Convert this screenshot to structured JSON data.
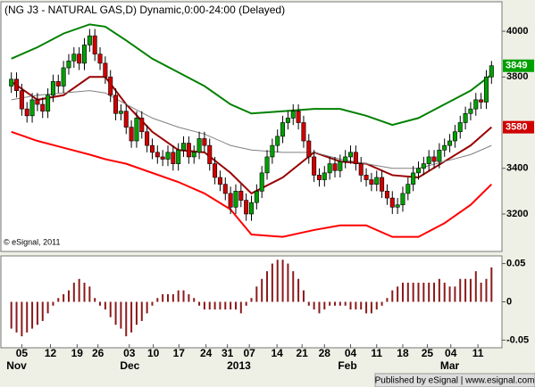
{
  "chart_data": [
    {
      "type": "candlestick",
      "title": "(NG J3 - NATURAL GAS,D) Dynamic,0:00-24:00 (Delayed)",
      "credit": "© eSignal, 2011",
      "publisher": "Published by eSignal | www.esignal.com",
      "up_color": "#00a000",
      "down_color": "#d00000",
      "open": [
        3760,
        3790,
        3740,
        3660,
        3630,
        3700,
        3680,
        3650,
        3720,
        3780,
        3760,
        3840,
        3870,
        3900,
        3860,
        3940,
        3980,
        3900,
        3860,
        3800,
        3720,
        3640,
        3650,
        3580,
        3520,
        3620,
        3560,
        3500,
        3470,
        3450,
        3440,
        3470,
        3420,
        3480,
        3510,
        3450,
        3470,
        3530,
        3500,
        3420,
        3360,
        3330,
        3290,
        3230,
        3300,
        3260,
        3200,
        3250,
        3300,
        3380,
        3450,
        3500,
        3540,
        3600,
        3620,
        3650,
        3600,
        3520,
        3450,
        3370,
        3350,
        3380,
        3420,
        3390,
        3430,
        3450,
        3470,
        3420,
        3370,
        3350,
        3330,
        3360,
        3300,
        3270,
        3230,
        3240,
        3290,
        3330,
        3380,
        3400,
        3420,
        3450,
        3430,
        3480,
        3500,
        3520,
        3560,
        3600,
        3640,
        3660,
        3700,
        3690,
        3800
      ],
      "high": [
        3820,
        3820,
        3770,
        3690,
        3730,
        3730,
        3710,
        3750,
        3810,
        3810,
        3870,
        3900,
        3930,
        3930,
        3970,
        4010,
        4010,
        3930,
        3890,
        3830,
        3750,
        3680,
        3680,
        3610,
        3650,
        3650,
        3590,
        3530,
        3500,
        3480,
        3500,
        3500,
        3510,
        3540,
        3540,
        3500,
        3560,
        3560,
        3530,
        3450,
        3390,
        3360,
        3320,
        3330,
        3330,
        3290,
        3280,
        3330,
        3410,
        3480,
        3530,
        3570,
        3630,
        3650,
        3680,
        3680,
        3630,
        3550,
        3480,
        3400,
        3410,
        3450,
        3450,
        3460,
        3480,
        3500,
        3500,
        3450,
        3400,
        3380,
        3390,
        3390,
        3330,
        3300,
        3270,
        3320,
        3360,
        3410,
        3430,
        3450,
        3480,
        3480,
        3510,
        3530,
        3550,
        3590,
        3630,
        3670,
        3690,
        3730,
        3730,
        3830,
        3870
      ],
      "low": [
        3730,
        3710,
        3630,
        3600,
        3600,
        3650,
        3620,
        3620,
        3690,
        3730,
        3730,
        3810,
        3840,
        3830,
        3830,
        3910,
        3870,
        3830,
        3770,
        3690,
        3610,
        3610,
        3550,
        3490,
        3490,
        3530,
        3470,
        3440,
        3420,
        3410,
        3410,
        3390,
        3390,
        3450,
        3420,
        3420,
        3440,
        3470,
        3390,
        3330,
        3300,
        3260,
        3200,
        3200,
        3230,
        3170,
        3170,
        3220,
        3270,
        3350,
        3420,
        3470,
        3510,
        3570,
        3590,
        3570,
        3490,
        3420,
        3340,
        3320,
        3320,
        3350,
        3360,
        3360,
        3400,
        3420,
        3390,
        3340,
        3320,
        3300,
        3300,
        3270,
        3240,
        3200,
        3200,
        3210,
        3260,
        3300,
        3350,
        3370,
        3390,
        3400,
        3400,
        3450,
        3470,
        3490,
        3530,
        3570,
        3610,
        3630,
        3660,
        3660,
        3770
      ],
      "close": [
        3790,
        3740,
        3660,
        3630,
        3700,
        3680,
        3650,
        3720,
        3780,
        3760,
        3840,
        3870,
        3900,
        3860,
        3940,
        3980,
        3900,
        3860,
        3800,
        3720,
        3640,
        3650,
        3580,
        3520,
        3620,
        3560,
        3500,
        3470,
        3450,
        3440,
        3470,
        3420,
        3480,
        3510,
        3450,
        3470,
        3530,
        3500,
        3420,
        3360,
        3330,
        3290,
        3230,
        3300,
        3260,
        3200,
        3250,
        3300,
        3380,
        3450,
        3500,
        3540,
        3600,
        3620,
        3650,
        3600,
        3520,
        3450,
        3370,
        3350,
        3380,
        3420,
        3390,
        3430,
        3450,
        3470,
        3420,
        3370,
        3350,
        3330,
        3360,
        3300,
        3270,
        3230,
        3240,
        3290,
        3330,
        3380,
        3400,
        3420,
        3450,
        3430,
        3480,
        3500,
        3520,
        3560,
        3600,
        3640,
        3660,
        3700,
        3690,
        3800,
        3849
      ],
      "lines": [
        {
          "color": "#008000",
          "x": [
            0,
            5,
            10,
            15,
            18,
            22,
            27,
            32,
            37,
            42,
            46,
            52,
            58,
            63,
            68,
            73,
            78,
            83,
            88,
            92
          ],
          "values": [
            3880,
            3930,
            3990,
            4030,
            4020,
            3960,
            3880,
            3820,
            3760,
            3680,
            3640,
            3650,
            3660,
            3660,
            3630,
            3590,
            3620,
            3680,
            3740,
            3810
          ]
        },
        {
          "color": "#ff0000",
          "x": [
            0,
            5,
            10,
            15,
            18,
            22,
            27,
            32,
            37,
            42,
            46,
            52,
            58,
            63,
            68,
            73,
            78,
            83,
            88,
            92
          ],
          "values": [
            3560,
            3520,
            3490,
            3460,
            3440,
            3420,
            3380,
            3340,
            3290,
            3220,
            3110,
            3100,
            3130,
            3150,
            3150,
            3100,
            3100,
            3160,
            3240,
            3330
          ]
        },
        {
          "color": "#990000",
          "x": [
            0,
            5,
            10,
            15,
            18,
            22,
            27,
            32,
            37,
            42,
            46,
            52,
            58,
            63,
            68,
            73,
            78,
            83,
            88,
            92
          ],
          "values": [
            3780,
            3700,
            3720,
            3800,
            3800,
            3680,
            3560,
            3480,
            3470,
            3380,
            3290,
            3360,
            3470,
            3430,
            3420,
            3370,
            3360,
            3430,
            3500,
            3580
          ]
        },
        {
          "color": "#808080",
          "x": [
            0,
            5,
            10,
            15,
            18,
            22,
            27,
            32,
            37,
            42,
            46,
            52,
            58,
            63,
            68,
            73,
            78,
            83,
            88,
            92
          ],
          "values": [
            3700,
            3720,
            3730,
            3740,
            3730,
            3680,
            3620,
            3580,
            3550,
            3500,
            3480,
            3470,
            3470,
            3440,
            3420,
            3400,
            3400,
            3430,
            3460,
            3500
          ]
        }
      ],
      "xlim": [
        -2,
        94
      ],
      "ylim": [
        3036,
        4129
      ],
      "yticks": [
        3200,
        3400,
        3800,
        4000
      ],
      "xticks": [
        {
          "value": 2,
          "label": "05"
        },
        {
          "value": 7.5,
          "label": "12"
        },
        {
          "value": 12.6,
          "label": "19"
        },
        {
          "value": 16.6,
          "label": "26"
        },
        {
          "value": 22.6,
          "label": "03"
        },
        {
          "value": 27.2,
          "label": "10"
        },
        {
          "value": 32.1,
          "label": "17"
        },
        {
          "value": 37.3,
          "label": "24"
        },
        {
          "value": 41.4,
          "label": "31"
        },
        {
          "value": 45.6,
          "label": "07"
        },
        {
          "value": 50.9,
          "label": "14"
        },
        {
          "value": 55.7,
          "label": "21"
        },
        {
          "value": 60,
          "label": "28"
        },
        {
          "value": 65,
          "label": "04"
        },
        {
          "value": 70,
          "label": "11"
        },
        {
          "value": 75,
          "label": "18"
        },
        {
          "value": 79.7,
          "label": "25"
        },
        {
          "value": 84.2,
          "label": "04"
        },
        {
          "value": 89.4,
          "label": "11"
        }
      ],
      "month_ticks": [
        {
          "value": 1,
          "label": "Nov"
        },
        {
          "value": 22.7,
          "label": "Dec"
        },
        {
          "value": 43.6,
          "label": "2013"
        },
        {
          "value": 64.4,
          "label": "Feb"
        },
        {
          "value": 84,
          "label": "Mar"
        }
      ]
    },
    {
      "type": "bar",
      "color": "#8b1a1a",
      "values": [
        -0.035,
        -0.04,
        -0.045,
        -0.04,
        -0.035,
        -0.03,
        -0.025,
        -0.015,
        -0.005,
        0.005,
        0.01,
        0.015,
        0.025,
        0.03,
        0.025,
        0.02,
        0.005,
        -0.005,
        -0.01,
        -0.02,
        -0.03,
        -0.035,
        -0.045,
        -0.04,
        -0.03,
        -0.025,
        -0.015,
        -0.005,
        0.005,
        0.01,
        0.01,
        0.01,
        0.015,
        0.015,
        0.01,
        0.005,
        -0.005,
        -0.01,
        -0.01,
        -0.01,
        -0.01,
        -0.01,
        -0.01,
        -0.01,
        -0.015,
        -0.005,
        0.005,
        0.02,
        0.03,
        0.04,
        0.05,
        0.055,
        0.055,
        0.05,
        0.04,
        0.03,
        0.015,
        -0.005,
        -0.01,
        -0.015,
        -0.01,
        -0.005,
        -0.005,
        -0.005,
        -0.005,
        -0.01,
        -0.01,
        -0.01,
        -0.015,
        -0.015,
        -0.01,
        -0.005,
        0.005,
        0.015,
        0.02,
        0.025,
        0.025,
        0.025,
        0.025,
        0.025,
        0.025,
        0.025,
        0.03,
        0.025,
        0.02,
        0.02,
        0.03,
        0.03,
        0.03,
        0.04,
        0.025,
        0.03,
        0.045
      ],
      "ylim": [
        -0.06,
        0.06
      ],
      "yticks": [
        0.05,
        0,
        -0.05
      ]
    }
  ]
}
